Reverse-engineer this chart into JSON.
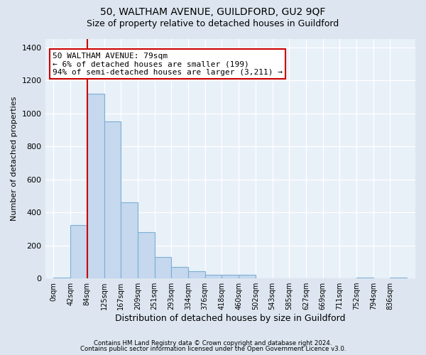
{
  "title1": "50, WALTHAM AVENUE, GUILDFORD, GU2 9QF",
  "title2": "Size of property relative to detached houses in Guildford",
  "xlabel": "Distribution of detached houses by size in Guildford",
  "ylabel": "Number of detached properties",
  "footnote1": "Contains HM Land Registry data © Crown copyright and database right 2024.",
  "footnote2": "Contains public sector information licensed under the Open Government Licence v3.0.",
  "bar_values": [
    5,
    325,
    1120,
    950,
    460,
    280,
    130,
    70,
    45,
    20,
    20,
    20,
    0,
    0,
    0,
    0,
    0,
    0,
    5,
    0,
    5
  ],
  "bar_labels": [
    "0sqm",
    "42sqm",
    "84sqm",
    "125sqm",
    "167sqm",
    "209sqm",
    "251sqm",
    "293sqm",
    "334sqm",
    "376sqm",
    "418sqm",
    "460sqm",
    "502sqm",
    "543sqm",
    "585sqm",
    "627sqm",
    "669sqm",
    "711sqm",
    "752sqm",
    "794sqm",
    "836sqm"
  ],
  "bar_color": "#c5d8ee",
  "bar_edgecolor": "#7bafd4",
  "property_line_x": 84,
  "annotation_text": "50 WALTHAM AVENUE: 79sqm\n← 6% of detached houses are smaller (199)\n94% of semi-detached houses are larger (3,211) →",
  "annotation_box_color": "#ffffff",
  "annotation_box_edgecolor": "#cc0000",
  "vline_color": "#cc0000",
  "ylim": [
    0,
    1450
  ],
  "yticks": [
    0,
    200,
    400,
    600,
    800,
    1000,
    1200,
    1400
  ],
  "bg_color": "#dde6f0",
  "plot_bg_color": "#e8f0f8",
  "grid_color": "#ffffff",
  "title_fontsize": 10,
  "subtitle_fontsize": 9,
  "bin_width": 42
}
